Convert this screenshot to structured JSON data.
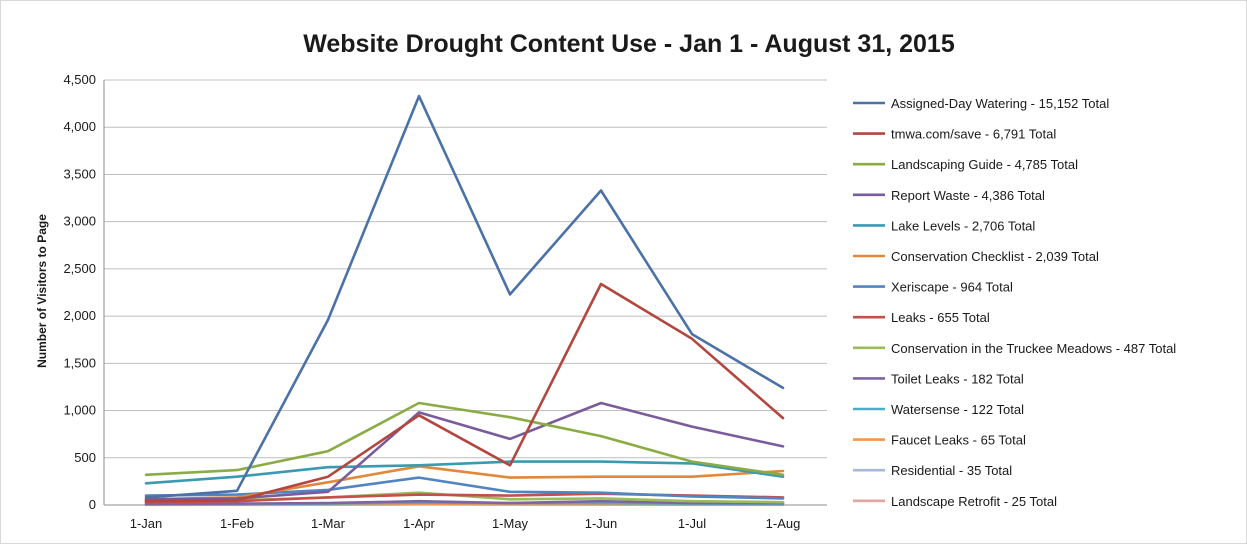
{
  "chart_data": {
    "type": "line",
    "title": "Website Drought Content Use - Jan 1 - August 31, 2015",
    "xlabel": "",
    "ylabel": "Number of Visitors to Page",
    "x": [
      "1-Jan",
      "1-Feb",
      "1-Mar",
      "1-Apr",
      "1-May",
      "1-Jun",
      "1-Jul",
      "1-Aug"
    ],
    "ylim": [
      0,
      4500
    ],
    "yticks": [
      0,
      500,
      1000,
      1500,
      2000,
      2500,
      3000,
      3500,
      4000,
      4500
    ],
    "ytick_labels": [
      "0",
      "500",
      "1,000",
      "1,500",
      "2,000",
      "2,500",
      "3,000",
      "3,500",
      "4,000",
      "4,500"
    ],
    "grid": "horizontal",
    "legend_position": "right",
    "series": [
      {
        "name": "Assigned-Day Watering - 15,152 Total",
        "color": "#4a72a8",
        "values": [
          80,
          150,
          1960,
          4330,
          2230,
          3330,
          1810,
          1240
        ]
      },
      {
        "name": "tmwa.com/save - 6,791 Total",
        "color": "#b3473f",
        "values": [
          40,
          50,
          300,
          950,
          420,
          2340,
          1760,
          920
        ]
      },
      {
        "name": "Landscaping Guide - 4,785 Total",
        "color": "#8aac45",
        "values": [
          320,
          370,
          570,
          1080,
          930,
          730,
          460,
          320
        ]
      },
      {
        "name": "Report Waste - 4,386 Total",
        "color": "#7a5b9b",
        "values": [
          60,
          70,
          140,
          980,
          700,
          1080,
          830,
          620
        ]
      },
      {
        "name": "Lake Levels - 2,706 Total",
        "color": "#3b9ab2",
        "values": [
          230,
          300,
          400,
          420,
          460,
          460,
          440,
          300
        ]
      },
      {
        "name": "Conservation Checklist - 2,039 Total",
        "color": "#e1883a",
        "values": [
          60,
          80,
          240,
          410,
          290,
          300,
          300,
          360
        ]
      },
      {
        "name": "Xeriscape - 964 Total",
        "color": "#5084c3",
        "values": [
          100,
          110,
          160,
          290,
          140,
          130,
          90,
          70
        ]
      },
      {
        "name": "Leaks - 655 Total",
        "color": "#c4504c",
        "values": [
          30,
          40,
          80,
          110,
          100,
          120,
          100,
          80
        ]
      },
      {
        "name": "Conservation in the Truckee Meadows - 487 Total",
        "color": "#9bbb59",
        "values": [
          40,
          50,
          80,
          130,
          60,
          70,
          40,
          30
        ]
      },
      {
        "name": "Toilet Leaks - 182 Total",
        "color": "#8064a2",
        "values": [
          10,
          15,
          20,
          40,
          20,
          40,
          20,
          20
        ]
      },
      {
        "name": "Watersense - 122 Total",
        "color": "#4bacc6",
        "values": [
          10,
          10,
          15,
          25,
          20,
          20,
          15,
          10
        ]
      },
      {
        "name": "Faucet Leaks - 65 Total",
        "color": "#f79646",
        "values": [
          5,
          5,
          10,
          15,
          10,
          10,
          5,
          5
        ]
      },
      {
        "name": "Residential - 35 Total",
        "color": "#a7b9d4",
        "values": [
          3,
          3,
          5,
          8,
          5,
          5,
          3,
          3
        ]
      },
      {
        "name": "Landscape Retrofit - 25 Total",
        "color": "#e3a5a3",
        "values": [
          2,
          2,
          3,
          5,
          5,
          4,
          2,
          2
        ]
      }
    ]
  }
}
